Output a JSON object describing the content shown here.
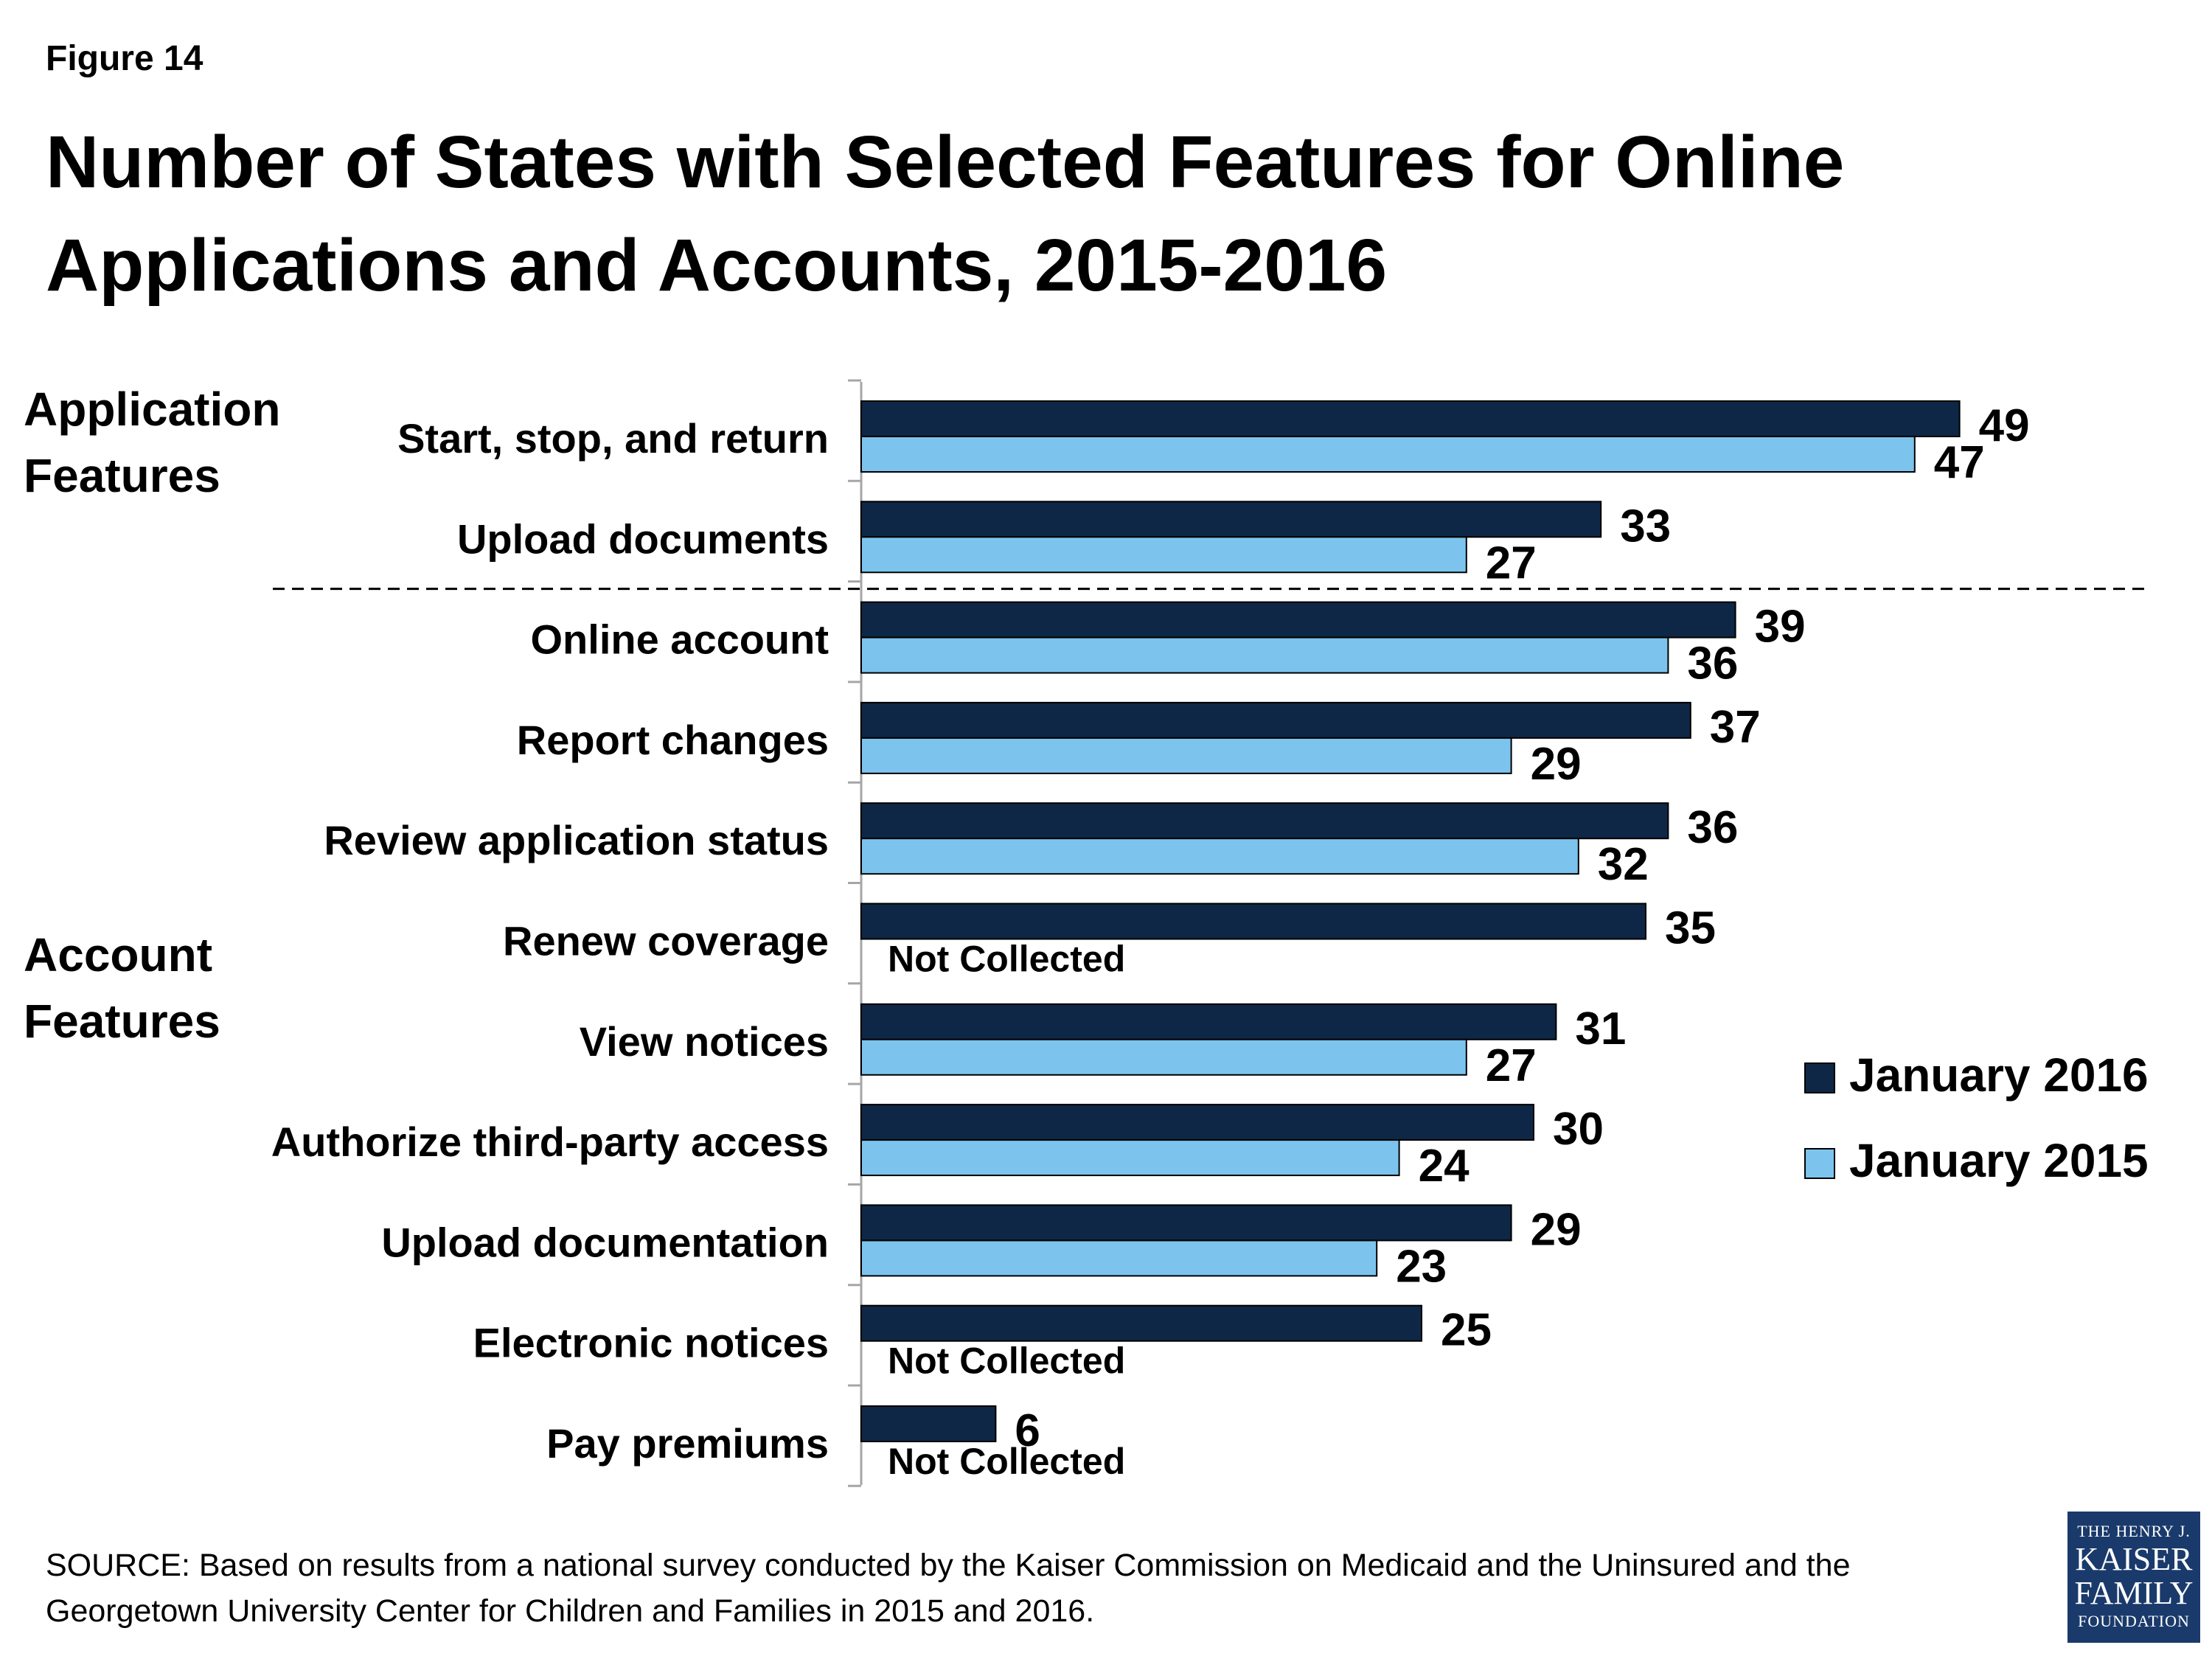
{
  "figure_label": "Figure 14",
  "title": "Number of States with Selected Features for Online Applications and Accounts, 2015-2016",
  "groups": {
    "application": "Application Features",
    "account": "Account Features"
  },
  "colors": {
    "jan2016": "#0e2746",
    "jan2015": "#7cc4ed"
  },
  "source": "SOURCE: Based on results from a national survey conducted by the Kaiser Commission on Medicaid and the Uninsured and the Georgetown University Center for Children and Families in 2015 and 2016.",
  "logo": {
    "line1": "THE HENRY J.",
    "line2": "KAISER",
    "line3": "FAMILY",
    "line4": "FOUNDATION"
  },
  "chart_data": {
    "type": "bar",
    "orientation": "horizontal",
    "categories": [
      "Start, stop, and return",
      "Upload documents",
      "Online account",
      "Report changes",
      "Review application status",
      "Renew coverage",
      "View notices",
      "Authorize third-party access",
      "Upload documentation",
      "Electronic notices",
      "Pay premiums"
    ],
    "series": [
      {
        "name": "January 2016",
        "values": [
          49,
          33,
          39,
          37,
          36,
          35,
          31,
          30,
          29,
          25,
          6
        ]
      },
      {
        "name": "January 2015",
        "values": [
          47,
          27,
          36,
          29,
          32,
          null,
          27,
          24,
          23,
          null,
          null
        ]
      }
    ],
    "missing_label": "Not Collected",
    "xlim": [
      0,
      50
    ],
    "legend_position": "right",
    "grid": false
  }
}
